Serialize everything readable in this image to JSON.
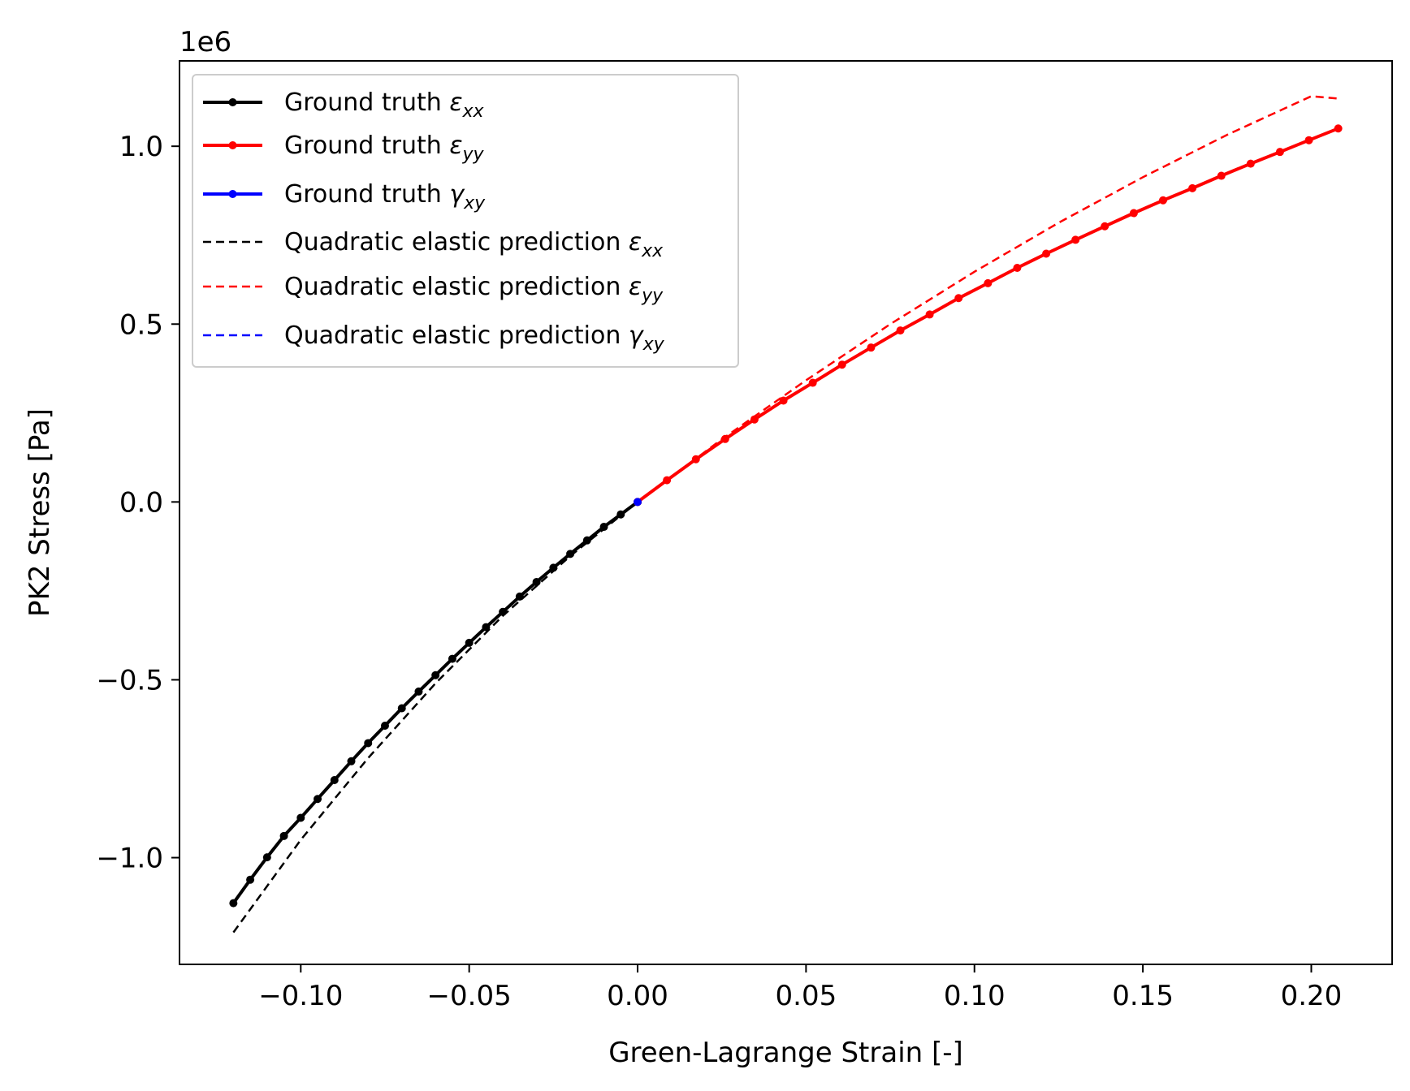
{
  "chart_data": {
    "type": "line",
    "title": "",
    "xlabel": "Green-Lagrange Strain [-]",
    "ylabel": "PK2 Stress [Pa]",
    "y_offset_label": "1e6",
    "xlim": [
      -0.136,
      0.224
    ],
    "ylim": [
      -1.3,
      1.24
    ],
    "y_multiplier": 1000000,
    "x_ticks": [
      -0.1,
      -0.05,
      0.0,
      0.05,
      0.1,
      0.15,
      0.2
    ],
    "x_tick_labels": [
      "−0.10",
      "−0.05",
      "0.00",
      "0.05",
      "0.10",
      "0.15",
      "0.20"
    ],
    "y_ticks": [
      -1.0,
      -0.5,
      0.0,
      0.5,
      1.0
    ],
    "y_tick_labels": [
      "−1.0",
      "−0.5",
      "0.0",
      "0.5",
      "1.0"
    ],
    "grid": false,
    "legend_position": "top-left",
    "series": [
      {
        "name": "Ground truth ε",
        "sub": "xx",
        "color": "#000000",
        "style": "solid-markers",
        "x": [
          -0.12,
          -0.115,
          -0.11,
          -0.105,
          -0.1,
          -0.095,
          -0.09,
          -0.085,
          -0.08,
          -0.075,
          -0.07,
          -0.065,
          -0.06,
          -0.055,
          -0.05,
          -0.045,
          -0.04,
          -0.035,
          -0.03,
          -0.025,
          -0.02,
          -0.015,
          -0.01,
          -0.005,
          0.0
        ],
        "y": [
          -1.128,
          -1.062,
          -0.999,
          -0.939,
          -0.888,
          -0.835,
          -0.782,
          -0.729,
          -0.678,
          -0.629,
          -0.58,
          -0.533,
          -0.487,
          -0.441,
          -0.396,
          -0.352,
          -0.309,
          -0.266,
          -0.225,
          -0.185,
          -0.146,
          -0.108,
          -0.07,
          -0.035,
          0.0
        ]
      },
      {
        "name": "Ground truth ε",
        "sub": "yy",
        "color": "#ff0000",
        "style": "solid-markers",
        "x": [
          0.0,
          0.0087,
          0.0173,
          0.026,
          0.0347,
          0.0433,
          0.052,
          0.0607,
          0.0693,
          0.078,
          0.0867,
          0.0953,
          0.104,
          0.1127,
          0.1213,
          0.13,
          0.1387,
          0.1473,
          0.156,
          0.1647,
          0.1733,
          0.182,
          0.1907,
          0.1993,
          0.208
        ],
        "y": [
          0.0,
          0.061,
          0.12,
          0.177,
          0.232,
          0.285,
          0.335,
          0.386,
          0.434,
          0.482,
          0.527,
          0.573,
          0.615,
          0.658,
          0.698,
          0.737,
          0.775,
          0.812,
          0.848,
          0.882,
          0.917,
          0.951,
          0.984,
          1.017,
          1.05
        ]
      },
      {
        "name": "Ground truth γ",
        "sub": "xy",
        "color": "#0000ff",
        "style": "solid-markers",
        "x": [
          0.0
        ],
        "y": [
          0.0
        ]
      },
      {
        "name": "Quadratic elastic prediction ε",
        "sub": "xx",
        "color": "#000000",
        "style": "dashed",
        "x": [
          -0.12,
          -0.1,
          -0.08,
          -0.06,
          -0.04,
          -0.02,
          0.0
        ],
        "y": [
          -1.21,
          -0.95,
          -0.72,
          -0.51,
          -0.32,
          -0.152,
          0.0
        ]
      },
      {
        "name": "Quadratic elastic prediction ε",
        "sub": "yy",
        "color": "#ff0000",
        "style": "dashed",
        "x": [
          0.0,
          0.025,
          0.05,
          0.075,
          0.1,
          0.125,
          0.15,
          0.175,
          0.2,
          0.208
        ],
        "y": [
          0.0,
          0.176,
          0.342,
          0.5,
          0.647,
          0.785,
          0.913,
          1.032,
          1.1408,
          1.134
        ]
      },
      {
        "name": "Quadratic elastic prediction γ",
        "sub": "xy",
        "color": "#0000ff",
        "style": "dashed",
        "x": [
          0.0
        ],
        "y": [
          0.0
        ]
      }
    ]
  }
}
